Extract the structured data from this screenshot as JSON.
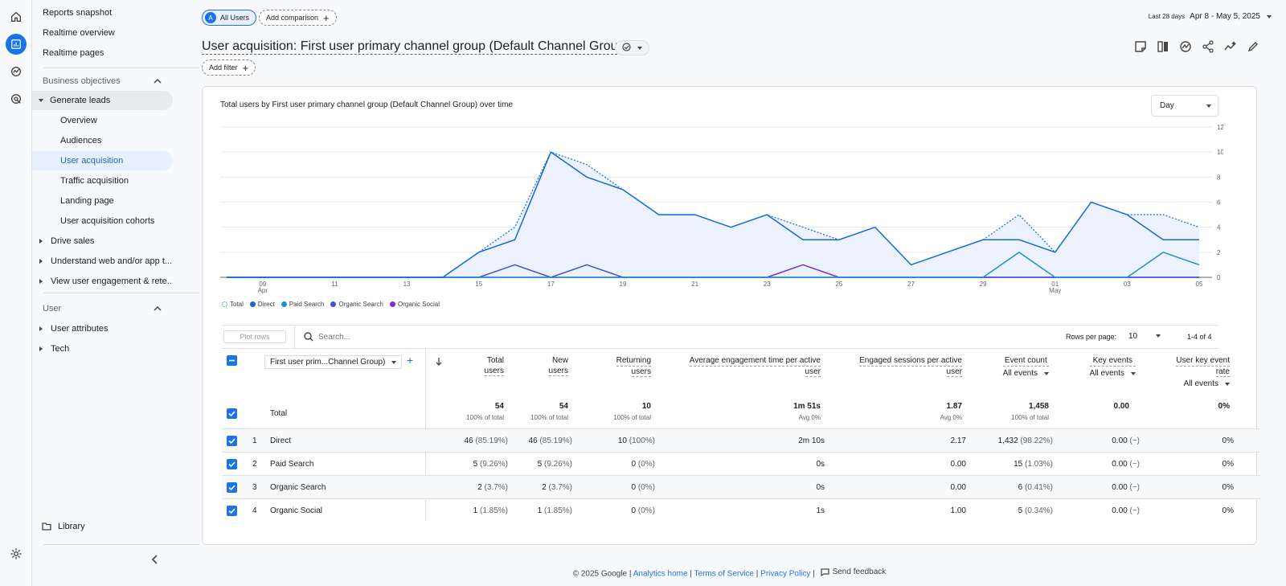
{
  "nav": {
    "top_items": [
      "Reports snapshot",
      "Realtime overview",
      "Realtime pages"
    ],
    "business_objectives": "Business objectives",
    "generate_leads": "Generate leads",
    "sub_items": [
      "Overview",
      "Audiences",
      "User acquisition",
      "Traffic acquisition",
      "Landing page",
      "User acquisition cohorts"
    ],
    "collapsed": [
      "Drive sales",
      "Understand web and/or app t...",
      "View user engagement & rete..."
    ],
    "user_section": "User",
    "user_items": [
      "User attributes",
      "Tech"
    ],
    "library": "Library"
  },
  "header": {
    "segment_letter": "A",
    "segment": "All Users",
    "add_comparison": "Add comparison",
    "date_label": "Last 28 days",
    "date_range": "Apr 8 - May 5, 2025",
    "title": "User acquisition: First user primary channel group (Default Channel Group)",
    "add_filter": "Add filter"
  },
  "chart_data": {
    "type": "line",
    "title": "Total users by First user primary channel group (Default Channel Group) over time",
    "granularity": "Day",
    "x": [
      "Apr 8",
      "Apr 9",
      "Apr 10",
      "Apr 11",
      "Apr 12",
      "Apr 13",
      "Apr 14",
      "Apr 15",
      "Apr 16",
      "Apr 17",
      "Apr 18",
      "Apr 19",
      "Apr 20",
      "Apr 21",
      "Apr 22",
      "Apr 23",
      "Apr 24",
      "Apr 25",
      "Apr 26",
      "Apr 27",
      "Apr 28",
      "Apr 29",
      "Apr 30",
      "May 1",
      "May 2",
      "May 3",
      "May 4",
      "May 5"
    ],
    "tick_labels": [
      {
        "i": 1,
        "label": "09",
        "sub": "Apr"
      },
      {
        "i": 3,
        "label": "11"
      },
      {
        "i": 5,
        "label": "13"
      },
      {
        "i": 7,
        "label": "15"
      },
      {
        "i": 9,
        "label": "17"
      },
      {
        "i": 11,
        "label": "19"
      },
      {
        "i": 13,
        "label": "21"
      },
      {
        "i": 15,
        "label": "23"
      },
      {
        "i": 17,
        "label": "25"
      },
      {
        "i": 19,
        "label": "27"
      },
      {
        "i": 21,
        "label": "29"
      },
      {
        "i": 23,
        "label": "01",
        "sub": "May"
      },
      {
        "i": 25,
        "label": "03"
      },
      {
        "i": 27,
        "label": "05"
      }
    ],
    "yticks": [
      0,
      2,
      4,
      6,
      8,
      10,
      12
    ],
    "ylim": [
      0,
      12
    ],
    "series": [
      {
        "name": "Total",
        "color": "#1a73e8",
        "dashed": true,
        "values": [
          0,
          0,
          0,
          0,
          0,
          0,
          0,
          2,
          4,
          10,
          9,
          7,
          5,
          5,
          4,
          5,
          4,
          3,
          4,
          1,
          2,
          3,
          5,
          2,
          6,
          5,
          5,
          4
        ]
      },
      {
        "name": "Direct",
        "color": "#1967d2",
        "values": [
          0,
          0,
          0,
          0,
          0,
          0,
          0,
          2,
          3,
          10,
          8,
          7,
          5,
          5,
          4,
          5,
          3,
          3,
          4,
          1,
          2,
          3,
          3,
          2,
          6,
          5,
          3,
          3
        ]
      },
      {
        "name": "Paid Search",
        "color": "#1e8fd1",
        "values": [
          0,
          0,
          0,
          0,
          0,
          0,
          0,
          0,
          0,
          0,
          0,
          0,
          0,
          0,
          0,
          0,
          0,
          0,
          0,
          0,
          0,
          0,
          2,
          0,
          0,
          0,
          2,
          1
        ]
      },
      {
        "name": "Organic Search",
        "color": "#3f51d8",
        "values": [
          0,
          0,
          0,
          0,
          0,
          0,
          0,
          0,
          1,
          0,
          1,
          0,
          0,
          0,
          0,
          0,
          0,
          0,
          0,
          0,
          0,
          0,
          0,
          0,
          0,
          0,
          0,
          0
        ]
      },
      {
        "name": "Organic Social",
        "color": "#7b2fd0",
        "values": [
          0,
          0,
          0,
          0,
          0,
          0,
          0,
          0,
          0,
          0,
          0,
          0,
          0,
          0,
          0,
          0,
          1,
          0,
          0,
          0,
          0,
          0,
          0,
          0,
          0,
          0,
          0,
          0
        ]
      }
    ]
  },
  "table": {
    "plot_rows": "Plot rows",
    "search_placeholder": "Search...",
    "rows_per_page_label": "Rows per page:",
    "rows_per_page": "10",
    "pagination": "1-4 of 4",
    "dimension": "First user prim...Channel Group)",
    "headers": {
      "total_users": [
        "Total",
        "users"
      ],
      "new_users": [
        "New",
        "users"
      ],
      "returning_users": [
        "Returning",
        "users"
      ],
      "avg_engagement": [
        "Average engagement time per active",
        "user"
      ],
      "engaged_sessions": [
        "Engaged sessions per active",
        "user"
      ],
      "event_count": "Event count",
      "key_events": "Key events",
      "user_key_event_rate": [
        "User key event",
        "rate"
      ],
      "all_events": "All events"
    },
    "total": {
      "label": "Total",
      "total_users": "54",
      "total_users_sub": "100% of total",
      "new_users": "54",
      "new_users_sub": "100% of total",
      "returning_users": "10",
      "returning_users_sub": "100% of total",
      "avg_engagement": "1m 51s",
      "avg_engagement_sub": "Avg 0%",
      "engaged_sessions": "1.87",
      "engaged_sessions_sub": "Avg 0%",
      "event_count": "1,458",
      "event_count_sub": "100% of total",
      "key_events": "0.00",
      "rate": "0%"
    },
    "rows": [
      {
        "n": "1",
        "name": "Direct",
        "tu": "46",
        "tup": "(85.19%)",
        "nu": "46",
        "nup": "(85.19%)",
        "ru": "10",
        "rup": "(100%)",
        "aet": "2m 10s",
        "es": "2.17",
        "ec": "1,432",
        "ecp": "(98.22%)",
        "ke": "0.00",
        "kep": "(−)",
        "rate": "0%"
      },
      {
        "n": "2",
        "name": "Paid Search",
        "tu": "5",
        "tup": "(9.26%)",
        "nu": "5",
        "nup": "(9.26%)",
        "ru": "0",
        "rup": "(0%)",
        "aet": "0s",
        "es": "0.00",
        "ec": "15",
        "ecp": "(1.03%)",
        "ke": "0.00",
        "kep": "(−)",
        "rate": "0%"
      },
      {
        "n": "3",
        "name": "Organic Search",
        "tu": "2",
        "tup": "(3.7%)",
        "nu": "2",
        "nup": "(3.7%)",
        "ru": "0",
        "rup": "(0%)",
        "aet": "0s",
        "es": "0.00",
        "ec": "6",
        "ecp": "(0.41%)",
        "ke": "0.00",
        "kep": "(−)",
        "rate": "0%"
      },
      {
        "n": "4",
        "name": "Organic Social",
        "tu": "1",
        "tup": "(1.85%)",
        "nu": "1",
        "nup": "(1.85%)",
        "ru": "0",
        "rup": "(0%)",
        "aet": "1s",
        "es": "1.00",
        "ec": "5",
        "ecp": "(0.34%)",
        "ke": "0.00",
        "kep": "(−)",
        "rate": "0%"
      }
    ]
  },
  "footer": {
    "copyright": "© 2025 Google |",
    "analytics_home": "Analytics home",
    "terms": "Terms of Service",
    "privacy": "Privacy Policy",
    "feedback": "Send feedback"
  },
  "colors": {
    "accent": "#1a73e8",
    "selected_bg": "#e8f0fe"
  }
}
